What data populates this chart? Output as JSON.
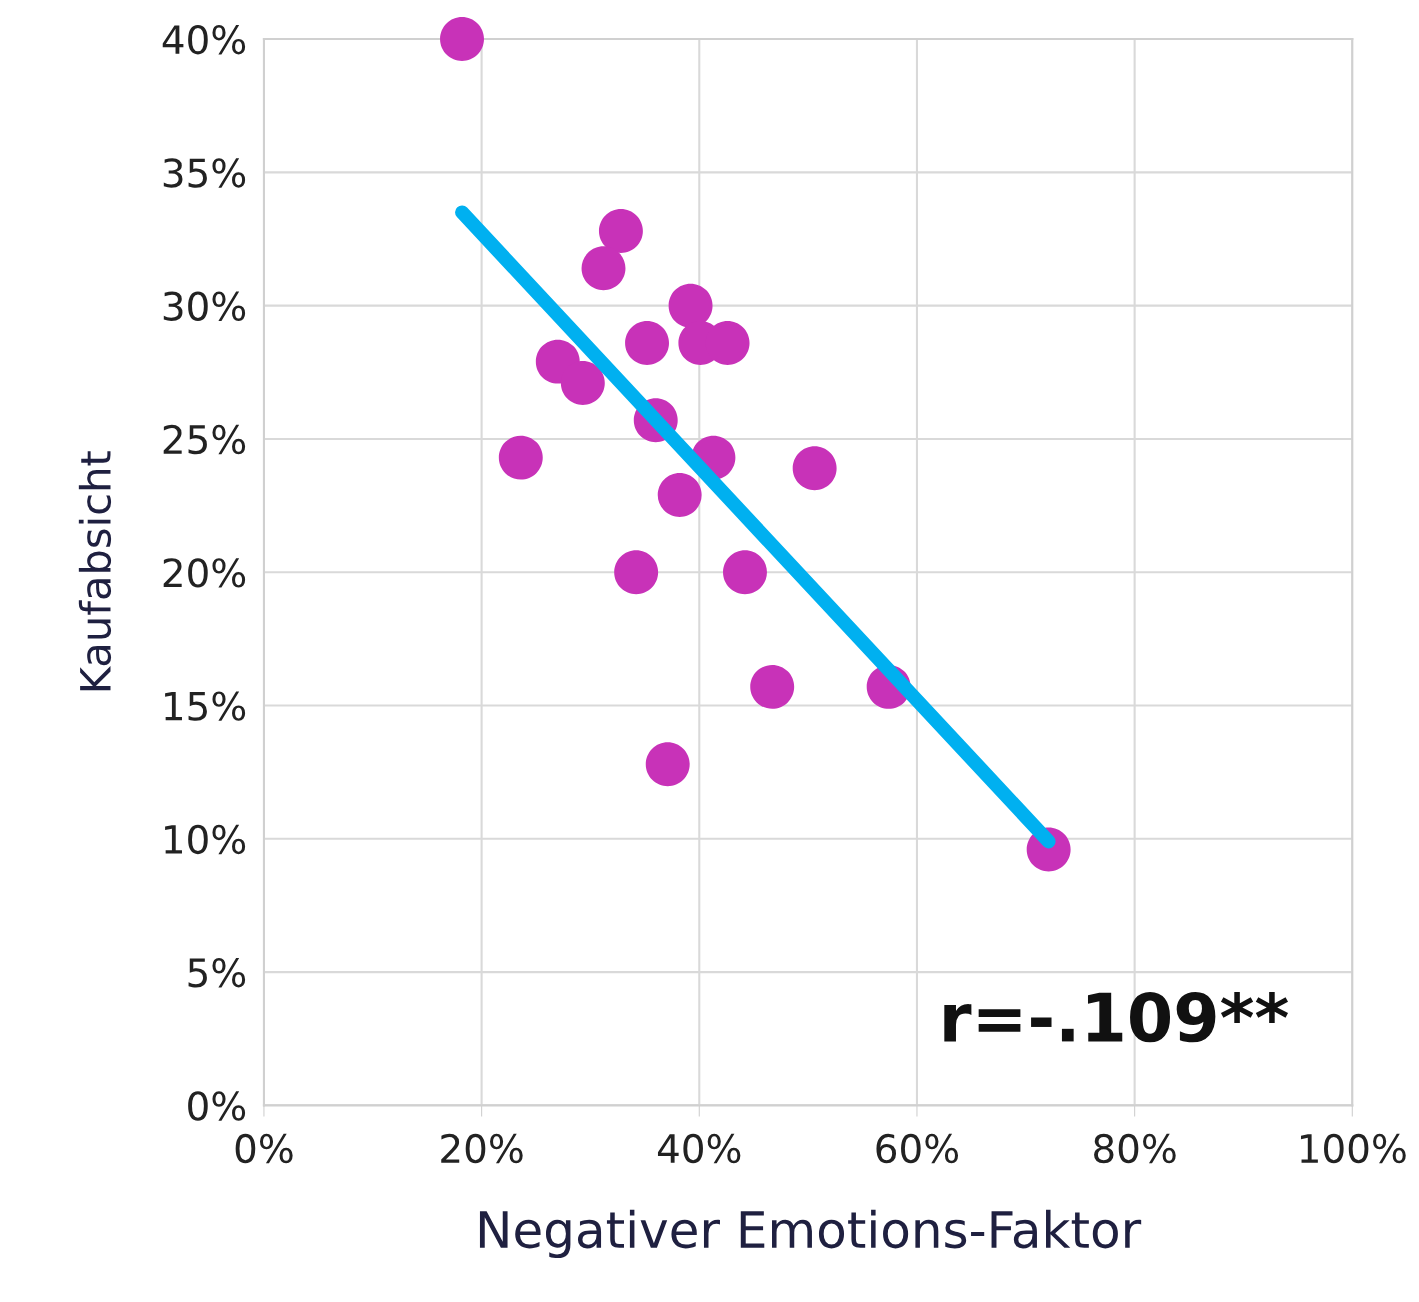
{
  "chart_data": {
    "type": "scatter",
    "xlabel": "Negativer Emotions-Faktor",
    "ylabel": "Kaufabsicht",
    "xlim": [
      0,
      1
    ],
    "ylim": [
      0,
      0.4
    ],
    "xticks": [
      {
        "value": 0,
        "label": "0%"
      },
      {
        "value": 0.2,
        "label": "20%"
      },
      {
        "value": 0.4,
        "label": "40%"
      },
      {
        "value": 0.6,
        "label": "60%"
      },
      {
        "value": 0.8,
        "label": "80%"
      },
      {
        "value": 1,
        "label": "100%"
      }
    ],
    "yticks": [
      {
        "value": 0,
        "label": "0%"
      },
      {
        "value": 0.05,
        "label": "5%"
      },
      {
        "value": 0.1,
        "label": "10%"
      },
      {
        "value": 0.15,
        "label": "15%"
      },
      {
        "value": 0.2,
        "label": "20%"
      },
      {
        "value": 0.25,
        "label": "25%"
      },
      {
        "value": 0.3,
        "label": "30%"
      },
      {
        "value": 0.35,
        "label": "35%"
      },
      {
        "value": 0.4,
        "label": "40%"
      }
    ],
    "grid": true,
    "legend": false,
    "series": [
      {
        "color": "#c832b8",
        "marker": "circle",
        "x": [
          0.182,
          0.328,
          0.312,
          0.392,
          0.352,
          0.401,
          0.426,
          0.27,
          0.293,
          0.36,
          0.236,
          0.413,
          0.506,
          0.382,
          0.342,
          0.442,
          0.467,
          0.574,
          0.371,
          0.721
        ],
        "values": [
          0.4,
          0.328,
          0.314,
          0.3,
          0.286,
          0.286,
          0.286,
          0.279,
          0.271,
          0.257,
          0.243,
          0.243,
          0.239,
          0.229,
          0.2,
          0.2,
          0.157,
          0.157,
          0.128,
          0.096
        ]
      },
      {
        "type": "line",
        "color": "#00b0f0",
        "marker": "none",
        "x": [
          0.182,
          0.721
        ],
        "values": [
          0.335,
          0.099
        ]
      }
    ],
    "annotations": [
      "r=-.109**"
    ]
  }
}
